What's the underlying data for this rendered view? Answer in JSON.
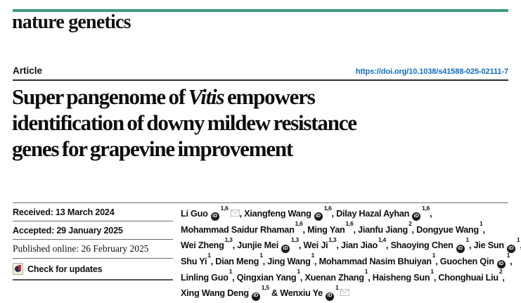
{
  "masthead": {
    "journal": "nature genetics"
  },
  "header": {
    "section_label": "Article",
    "doi": "https://doi.org/10.1038/s41588-025-02111-7"
  },
  "title": {
    "line1_before": "Super pangenome of ",
    "line1_italic": "Vitis",
    "line1_after": " empowers",
    "line2": "identification of downy mildew resistance",
    "line3": "genes for grapevine improvement"
  },
  "dates": {
    "received": "Received: 13 March 2024",
    "accepted": "Accepted: 29 January 2025",
    "published": "Published online: 26 February 2025",
    "check_updates": "Check for updates"
  },
  "icons": {
    "orcid_label": "iD"
  },
  "colors": {
    "accent_green": "#3b9c7d",
    "link_blue": "#0f6bc5",
    "crossmark_navy": "#1d2d5c",
    "crossmark_red": "#cd2a27"
  },
  "authors": {
    "lines": [
      [
        {
          "name": "Li Guo",
          "orcid": true,
          "sup": "1,6",
          "email": true,
          "trail": ", "
        },
        {
          "name": "Xiangfeng Wang",
          "orcid": true,
          "sup": "1,6",
          "trail": ", "
        },
        {
          "name": "Dilay Hazal Ayhan",
          "orcid": true,
          "sup": "1,6",
          "trail": ","
        }
      ],
      [
        {
          "name": "Mohammad Saidur Rhaman",
          "sup": "1,6",
          "trail": ", "
        },
        {
          "name": "Ming Yan",
          "sup": "1,6",
          "trail": ", "
        },
        {
          "name": "Jianfu Jiang",
          "sup": "2",
          "trail": ", "
        },
        {
          "name": "Dongyue Wang",
          "sup": "1",
          "trail": ","
        }
      ],
      [
        {
          "name": "Wei Zheng",
          "sup": "1,3",
          "trail": ", "
        },
        {
          "name": "Junjie Mei",
          "orcid": true,
          "sup": "1,3",
          "trail": ", "
        },
        {
          "name": "Wei Ji",
          "sup": "1,3",
          "trail": ", "
        },
        {
          "name": "Jian Jiao",
          "sup": "1,4",
          "trail": ", "
        },
        {
          "name": "Shaoying Chen",
          "orcid": true,
          "sup": "1",
          "trail": ", "
        },
        {
          "name": "Jie Sun",
          "orcid": true,
          "sup": "1",
          "trail": ","
        }
      ],
      [
        {
          "name": "Shu Yi",
          "sup": "1",
          "trail": ", "
        },
        {
          "name": "Dian Meng",
          "sup": "1",
          "trail": ", "
        },
        {
          "name": "Jing Wang",
          "sup": "1",
          "trail": ", "
        },
        {
          "name": "Mohammad Nasim Bhuiyan",
          "sup": "1",
          "trail": ", "
        },
        {
          "name": "Guochen Qin",
          "orcid": true,
          "sup": "1",
          "trail": ","
        }
      ],
      [
        {
          "name": "Linling Guo",
          "sup": "1",
          "trail": ", "
        },
        {
          "name": "Qingxian Yang",
          "sup": "1",
          "trail": ", "
        },
        {
          "name": "Xuenan Zhang",
          "sup": "1",
          "trail": ", "
        },
        {
          "name": "Haisheng Sun",
          "sup": "1",
          "trail": ", "
        },
        {
          "name": "Chonghuai Liu",
          "sup": "2",
          "trail": ","
        }
      ],
      [
        {
          "name": "Xing Wang Deng",
          "orcid": true,
          "sup": "1,5",
          "trail": " "
        },
        {
          "pre": "& ",
          "name": "Wenxiu Ye",
          "orcid": true,
          "sup": "1",
          "email": true,
          "trail": ""
        }
      ]
    ]
  }
}
